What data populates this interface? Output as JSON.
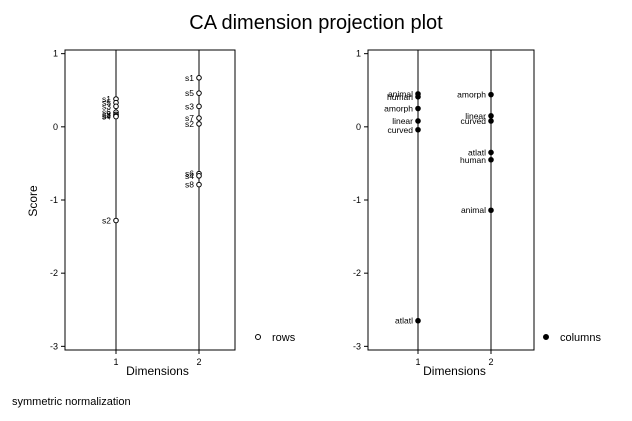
{
  "title": "CA dimension projection plot",
  "ylabel": "Score",
  "footnote": "symmetric normalization",
  "chart_data": [
    {
      "type": "scatter",
      "panel": "rows",
      "xlabel": "Dimensions",
      "ylabel": "Score",
      "x_ticks": [
        "1",
        "2"
      ],
      "y_ticks": [
        1,
        0,
        -1,
        -2,
        -3
      ],
      "ylim": [
        -3.05,
        1.05
      ],
      "marker": "hollow-circle",
      "legend": "rows",
      "legend_position": "right",
      "points": [
        {
          "dim": 1,
          "label": "s1",
          "y": 0.38
        },
        {
          "dim": 1,
          "label": "s5",
          "y": 0.33
        },
        {
          "dim": 1,
          "label": "s3",
          "y": 0.28
        },
        {
          "dim": 1,
          "label": "s6",
          "y": 0.2
        },
        {
          "dim": 1,
          "label": "s8",
          "y": 0.17
        },
        {
          "dim": 1,
          "label": "s7",
          "y": 0.15
        },
        {
          "dim": 1,
          "label": "s4",
          "y": 0.14
        },
        {
          "dim": 1,
          "label": "s2",
          "y": -1.28
        },
        {
          "dim": 2,
          "label": "s1",
          "y": 0.67
        },
        {
          "dim": 2,
          "label": "s5",
          "y": 0.46
        },
        {
          "dim": 2,
          "label": "s3",
          "y": 0.28
        },
        {
          "dim": 2,
          "label": "s7",
          "y": 0.12
        },
        {
          "dim": 2,
          "label": "s2",
          "y": 0.04
        },
        {
          "dim": 2,
          "label": "s6",
          "y": -0.64
        },
        {
          "dim": 2,
          "label": "s4",
          "y": -0.67
        },
        {
          "dim": 2,
          "label": "s8",
          "y": -0.79
        }
      ]
    },
    {
      "type": "scatter",
      "panel": "columns",
      "xlabel": "Dimensions",
      "ylabel": "",
      "x_ticks": [
        "1",
        "2"
      ],
      "y_ticks": [
        1,
        0,
        -1,
        -2,
        -3
      ],
      "ylim": [
        -3.05,
        1.05
      ],
      "marker": "filled-circle",
      "legend": "columns",
      "legend_position": "right",
      "points": [
        {
          "dim": 1,
          "label": "animal",
          "y": 0.45
        },
        {
          "dim": 1,
          "label": "human",
          "y": 0.41
        },
        {
          "dim": 1,
          "label": "amorph",
          "y": 0.25
        },
        {
          "dim": 1,
          "label": "linear",
          "y": 0.08
        },
        {
          "dim": 1,
          "label": "curved",
          "y": -0.04
        },
        {
          "dim": 1,
          "label": "atlatl",
          "y": -2.65
        },
        {
          "dim": 2,
          "label": "amorph",
          "y": 0.44
        },
        {
          "dim": 2,
          "label": "linear",
          "y": 0.15
        },
        {
          "dim": 2,
          "label": "curved",
          "y": 0.08
        },
        {
          "dim": 2,
          "label": "atlatl",
          "y": -0.35
        },
        {
          "dim": 2,
          "label": "human",
          "y": -0.45
        },
        {
          "dim": 2,
          "label": "animal",
          "y": -1.14
        }
      ]
    }
  ]
}
